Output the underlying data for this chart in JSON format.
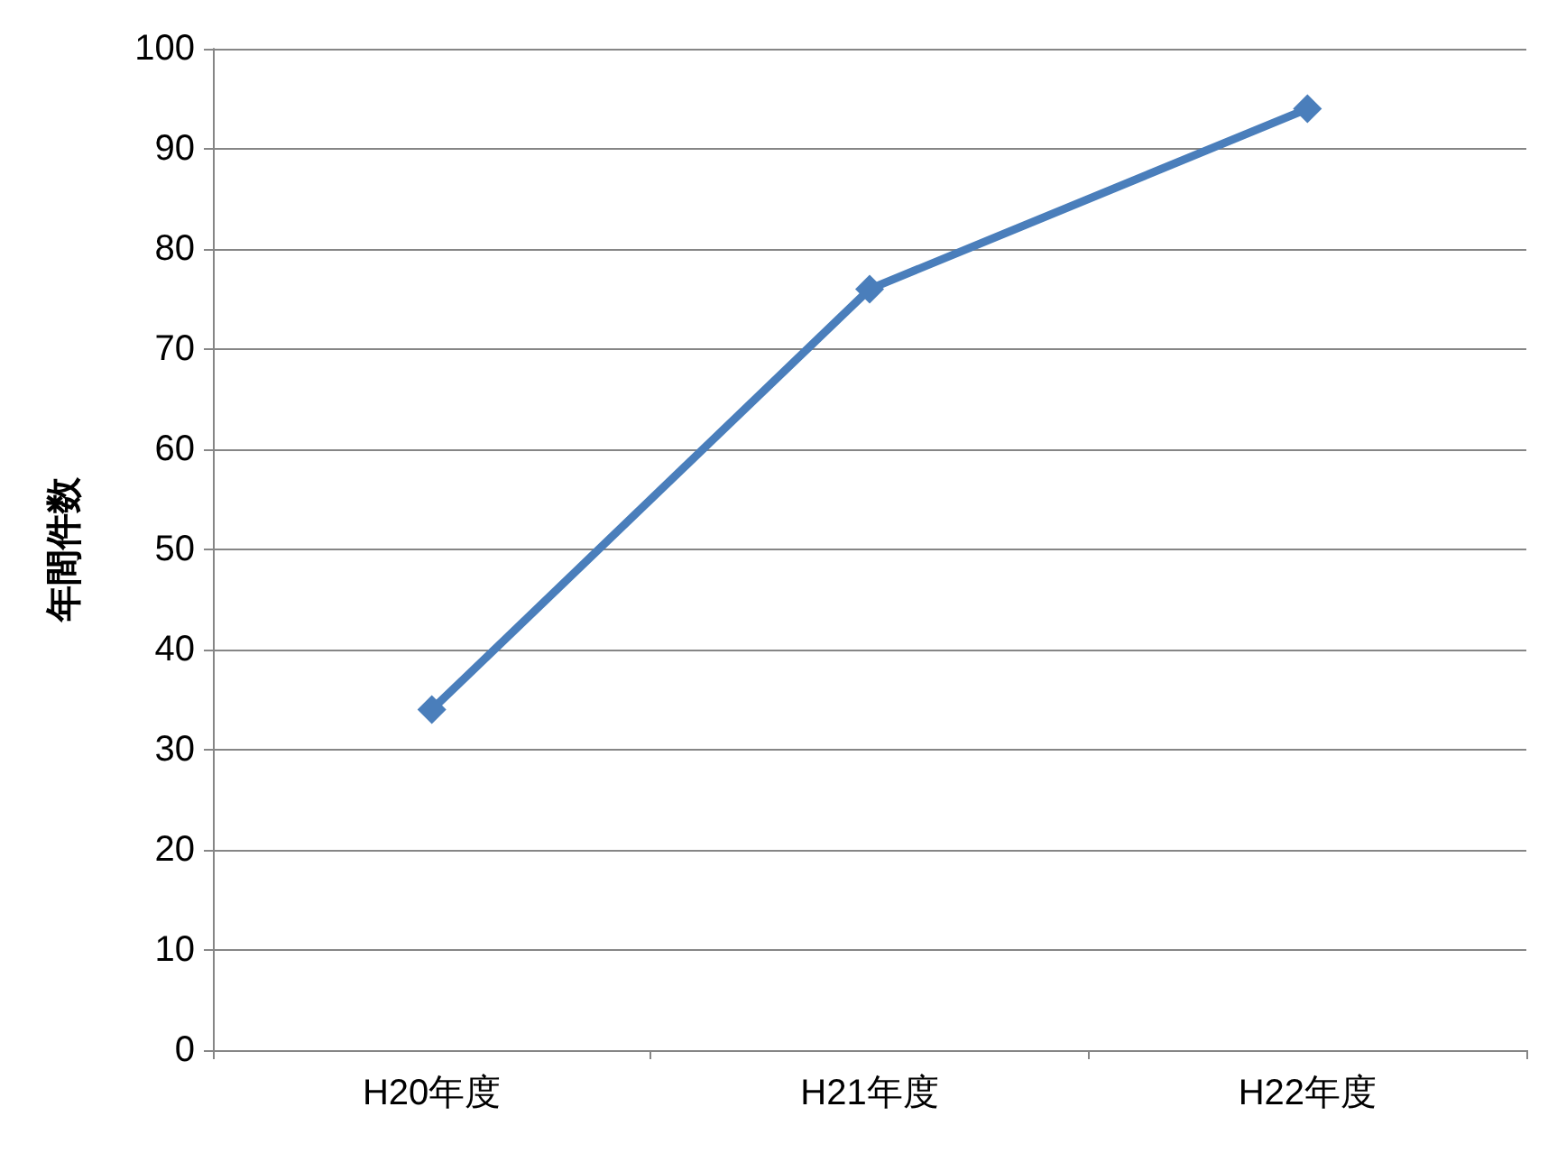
{
  "chart_data": {
    "type": "line",
    "ylabel": "年間件数",
    "categories": [
      "H20年度",
      "H21年度",
      "H22年度"
    ],
    "series": [
      {
        "color": "#4a7ebb",
        "values": [
          34,
          76,
          94
        ]
      }
    ],
    "ylim": [
      0,
      100
    ],
    "yticks": [
      0,
      10,
      20,
      30,
      40,
      50,
      60,
      70,
      80,
      90,
      100
    ],
    "grid": "y",
    "marker": "diamond",
    "line_style": "solid"
  }
}
